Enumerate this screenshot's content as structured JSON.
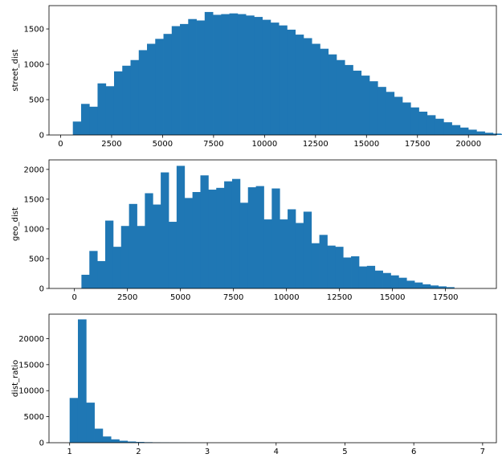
{
  "chart_data": [
    {
      "type": "histogram",
      "ylabel": "street_dist",
      "xlim": [
        -570,
        21370
      ],
      "ylim": [
        0,
        1830
      ],
      "bin_start": 600,
      "bin_width": 404,
      "values": [
        190,
        440,
        400,
        730,
        690,
        900,
        980,
        1060,
        1200,
        1290,
        1360,
        1430,
        1540,
        1570,
        1640,
        1620,
        1740,
        1700,
        1710,
        1720,
        1710,
        1690,
        1670,
        1630,
        1590,
        1550,
        1490,
        1420,
        1370,
        1290,
        1220,
        1140,
        1060,
        990,
        910,
        840,
        760,
        680,
        610,
        540,
        460,
        390,
        330,
        280,
        230,
        180,
        140,
        105,
        75,
        50,
        32,
        20,
        10
      ],
      "xticks": [
        0,
        2500,
        5000,
        7500,
        10000,
        12500,
        15000,
        17500,
        20000
      ],
      "yticks": [
        0,
        500,
        1000,
        1500
      ],
      "tick_labels_x": [
        "0",
        "2500",
        "5000",
        "7500",
        "10000",
        "12500",
        "15000",
        "17500",
        "20000"
      ],
      "tick_labels_y": [
        "0",
        "500",
        "1000",
        "1500"
      ],
      "color": "#1f77b4"
    },
    {
      "type": "histogram",
      "ylabel": "geo_dist",
      "xlim": [
        -1200,
        19900
      ],
      "ylim": [
        0,
        2160
      ],
      "bin_start": 330,
      "bin_width": 374,
      "values": [
        230,
        630,
        460,
        1140,
        700,
        1050,
        1420,
        1050,
        1600,
        1410,
        1950,
        1120,
        2060,
        1520,
        1620,
        1900,
        1660,
        1690,
        1800,
        1840,
        1440,
        1700,
        1720,
        1160,
        1680,
        1160,
        1330,
        1100,
        1290,
        760,
        900,
        720,
        700,
        520,
        540,
        370,
        380,
        300,
        260,
        220,
        180,
        130,
        100,
        70,
        50,
        35,
        22
      ],
      "xticks": [
        0,
        2500,
        5000,
        7500,
        10000,
        12500,
        15000,
        17500
      ],
      "yticks": [
        0,
        500,
        1000,
        1500,
        2000
      ],
      "tick_labels_x": [
        "0",
        "2500",
        "5000",
        "7500",
        "10000",
        "12500",
        "15000",
        "17500"
      ],
      "tick_labels_y": [
        "0",
        "500",
        "1000",
        "1500",
        "2000"
      ],
      "color": "#1f77b4"
    },
    {
      "type": "histogram",
      "ylabel": "dist_ratio",
      "xlim": [
        0.7,
        7.2
      ],
      "ylim": [
        0,
        24700
      ],
      "bin_start": 1.0,
      "bin_width": 0.12,
      "values": [
        8600,
        23700,
        7700,
        2700,
        1200,
        650,
        380,
        230,
        150,
        100,
        70,
        50,
        35,
        25,
        18,
        12
      ],
      "xticks": [
        1,
        2,
        3,
        4,
        5,
        6,
        7
      ],
      "yticks": [
        0,
        5000,
        10000,
        15000,
        20000
      ],
      "tick_labels_x": [
        "1",
        "2",
        "3",
        "4",
        "5",
        "6",
        "7"
      ],
      "tick_labels_y": [
        "0",
        "5000",
        "10000",
        "15000",
        "20000"
      ],
      "color": "#1f77b4"
    }
  ]
}
